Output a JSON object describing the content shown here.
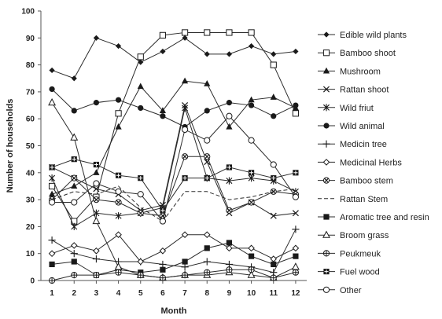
{
  "chart_data": {
    "type": "line",
    "title": "",
    "xlabel": "Month",
    "ylabel": "Number of households",
    "x": [
      1,
      2,
      3,
      4,
      5,
      6,
      7,
      8,
      9,
      10,
      11,
      12
    ],
    "xlim": [
      0.5,
      12.5
    ],
    "ylim": [
      0,
      100
    ],
    "y_ticks": [
      0,
      10,
      20,
      30,
      40,
      50,
      60,
      70,
      80,
      90,
      100
    ],
    "grid": false,
    "legend_position": "right",
    "series": [
      {
        "name": "Edible wild plants",
        "marker": "diamond-filled",
        "dash": false,
        "values": [
          78,
          75,
          90,
          87,
          81,
          85,
          90,
          84,
          84,
          87,
          84,
          85
        ]
      },
      {
        "name": "Bamboo shoot",
        "marker": "square-open",
        "dash": false,
        "values": [
          35,
          22,
          31,
          62,
          83,
          91,
          92,
          92,
          92,
          92,
          80,
          62
        ]
      },
      {
        "name": "Mushroom",
        "marker": "triangle-filled",
        "dash": false,
        "values": [
          32,
          35,
          40,
          57,
          72,
          63,
          74,
          73,
          57,
          67,
          68,
          64
        ]
      },
      {
        "name": "Rattan shoot",
        "marker": "x",
        "dash": false,
        "values": [
          42,
          38,
          34,
          32,
          26,
          28,
          65,
          44,
          25,
          29,
          24,
          25
        ]
      },
      {
        "name": "Wild friut",
        "marker": "asterisk",
        "dash": false,
        "values": [
          38,
          20,
          25,
          24,
          25,
          27,
          64,
          38,
          37,
          38,
          37,
          33
        ]
      },
      {
        "name": "Wild animal",
        "marker": "circle-filled",
        "dash": false,
        "values": [
          71,
          63,
          66,
          67,
          64,
          61,
          57,
          63,
          66,
          65,
          61,
          65
        ]
      },
      {
        "name": "Medicin tree",
        "marker": "plus",
        "dash": false,
        "values": [
          15,
          10,
          8,
          7,
          7,
          6,
          5,
          7,
          6,
          5,
          3,
          19
        ]
      },
      {
        "name": "Medicinal Herbs",
        "marker": "diamond-open",
        "dash": false,
        "values": [
          10,
          13,
          11,
          17,
          7,
          11,
          17,
          17,
          12,
          12,
          8,
          12
        ]
      },
      {
        "name": "Bamboo stem",
        "marker": "circle-x",
        "dash": false,
        "values": [
          30,
          38,
          30,
          29,
          25,
          24,
          46,
          46,
          26,
          29,
          33,
          32
        ]
      },
      {
        "name": "Rattan Stem",
        "marker": "none",
        "dash": true,
        "values": [
          30,
          33,
          32,
          35,
          27,
          22,
          33,
          33,
          30,
          31,
          33,
          34
        ]
      },
      {
        "name": "Aromatic tree and resin",
        "marker": "square-filled",
        "dash": false,
        "values": [
          6,
          7,
          2,
          4,
          3,
          4,
          7,
          12,
          14,
          9,
          6,
          9
        ]
      },
      {
        "name": "Broom grass",
        "marker": "triangle-open",
        "dash": false,
        "values": [
          66,
          53,
          22,
          5,
          2,
          1,
          2,
          2,
          3,
          2,
          1,
          5
        ]
      },
      {
        "name": "Peukmeuk",
        "marker": "circle-cross",
        "dash": false,
        "values": [
          0,
          2,
          2,
          3,
          2,
          1,
          2,
          3,
          4,
          4,
          1,
          3
        ]
      },
      {
        "name": "Fuel wood",
        "marker": "square-plus",
        "dash": false,
        "values": [
          42,
          45,
          43,
          39,
          38,
          26,
          38,
          38,
          42,
          40,
          38,
          40
        ]
      },
      {
        "name": "Other",
        "marker": "circle-open",
        "dash": false,
        "values": [
          29,
          29,
          36,
          33,
          32,
          22,
          56,
          52,
          61,
          52,
          43,
          31
        ]
      }
    ]
  }
}
